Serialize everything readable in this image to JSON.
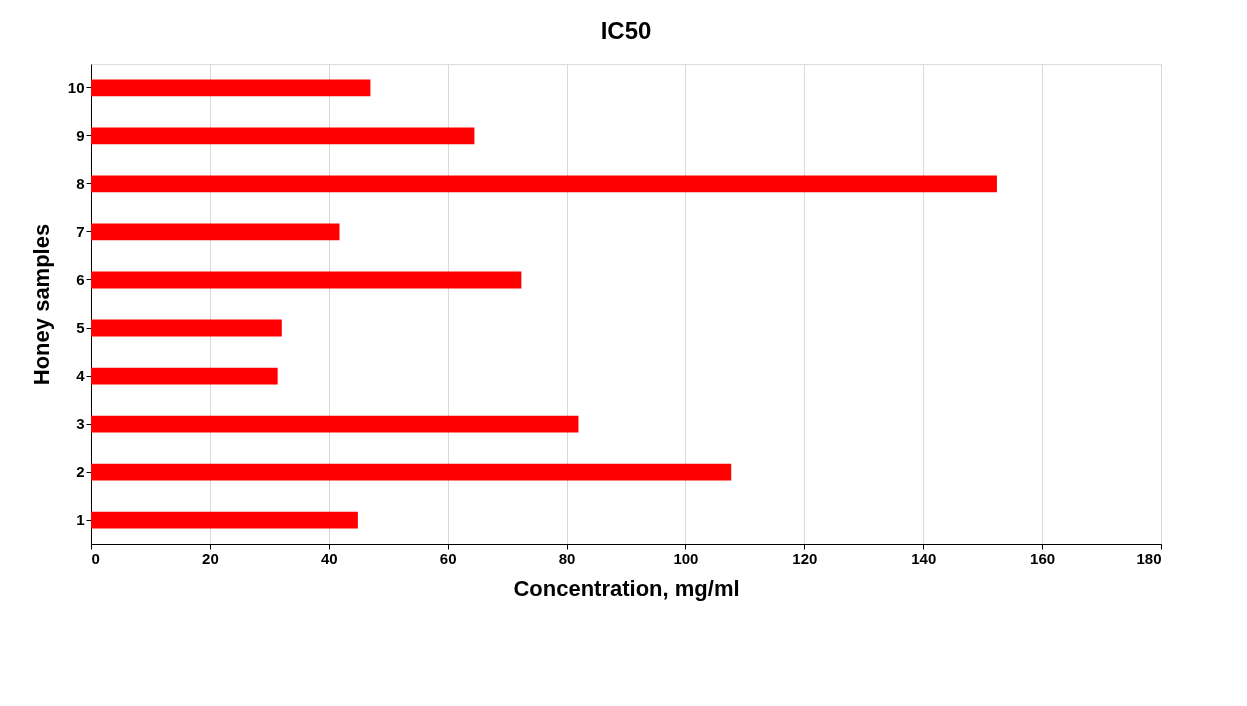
{
  "chart_data": {
    "type": "bar",
    "orientation": "horizontal",
    "title": "IC50",
    "xlabel": "Concentration, mg/ml",
    "ylabel": "Honey samples",
    "categories": [
      "10",
      "9",
      "8",
      "7",
      "6",
      "5",
      "4",
      "3",
      "2",
      "1"
    ],
    "values": [
      47,
      64.5,
      152.4,
      41.8,
      72.4,
      32.1,
      31.4,
      82.0,
      107.7,
      44.9
    ],
    "color": "#ff0000",
    "xlim": [
      0,
      180
    ],
    "xticks": [
      0,
      20,
      40,
      60,
      80,
      100,
      120,
      140,
      160,
      180
    ],
    "grid": "x"
  }
}
